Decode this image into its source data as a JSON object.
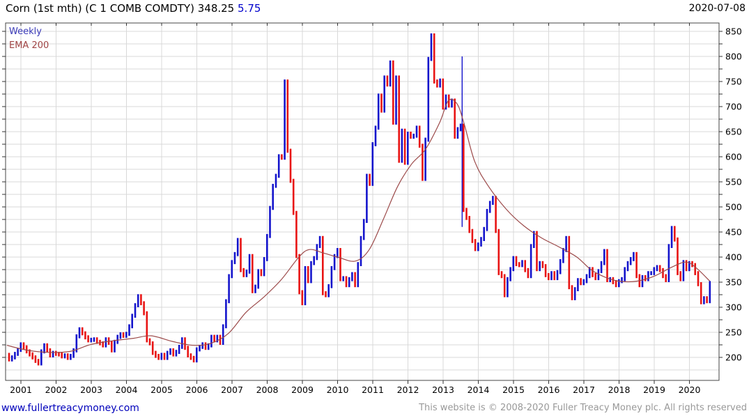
{
  "header": {
    "title": "Corn (1st mth) (C 1 COMB COMDTY)",
    "last_price": "348.25",
    "change": "5.75",
    "date": "2020-07-08"
  },
  "legend": {
    "series1": "Weekly",
    "series2": "EMA 200"
  },
  "footer": {
    "site_url": "www.fullertreacymoney.com",
    "copyright": "This website is © 2008-2020 Fuller Treacy Money plc. All rights reserved"
  },
  "colors": {
    "up_bar": "#1414cc",
    "down_bar": "#e81414",
    "ema_line": "#9c4a4a",
    "grid": "#d9d9d9",
    "border": "#444444",
    "axis_text": "#000000",
    "change_text": "#0000cc",
    "link_text": "#0000bb",
    "copyright_text": "#999999"
  },
  "chart_data": {
    "type": "line",
    "style": "weekly OHLC-style price bars, blue = up week, red = down week, with EMA overlay",
    "title": "Corn (1st mth) (C 1 COMB COMDTY) 348.25 5.75",
    "xlabel": "",
    "ylabel": "",
    "legend_position": "top-left",
    "grid": true,
    "x_ticks": [
      2001,
      2002,
      2003,
      2004,
      2005,
      2006,
      2007,
      2008,
      2009,
      2010,
      2011,
      2012,
      2013,
      2014,
      2015,
      2016,
      2017,
      2018,
      2019,
      2020
    ],
    "y_ticks": [
      200,
      250,
      300,
      350,
      400,
      450,
      500,
      550,
      600,
      650,
      700,
      750,
      800,
      850
    ],
    "y_grid_min": 175,
    "y_grid_max": 850,
    "y_grid_step": 25,
    "x_start_year": 2000.58,
    "x_step_years": 0.083333,
    "series": [
      {
        "name": "Weekly",
        "kind": "price-bars",
        "closes": [
          205,
          196,
          200,
          207,
          215,
          226,
          220,
          212,
          206,
          200,
          193,
          188,
          212,
          224,
          214,
          204,
          209,
          207,
          206,
          202,
          204,
          199,
          203,
          214,
          242,
          256,
          248,
          240,
          234,
          235,
          236,
          231,
          228,
          224,
          236,
          229,
          214,
          231,
          241,
          246,
          243,
          247,
          262,
          283,
          304,
          322,
          308,
          288,
          234,
          228,
          209,
          203,
          199,
          205,
          199,
          209,
          214,
          206,
          211,
          221,
          236,
          219,
          204,
          199,
          194,
          216,
          221,
          226,
          219,
          224,
          241,
          234,
          241,
          229,
          262,
          312,
          362,
          390,
          406,
          434,
          374,
          364,
          371,
          402,
          332,
          341,
          372,
          366,
          396,
          442,
          498,
          542,
          562,
          601,
          598,
          750,
          612,
          552,
          488,
          402,
          330,
          308,
          378,
          352,
          388,
          398,
          422,
          438,
          328,
          324,
          342,
          378,
          402,
          414,
          356,
          358,
          344,
          356,
          366,
          344,
          386,
          438,
          472,
          562,
          546,
          625,
          658,
          722,
          692,
          758,
          744,
          788,
          668,
          758,
          592,
          652,
          588,
          646,
          640,
          642,
          658,
          622,
          556,
          634,
          795,
          842,
          750,
          742,
          752,
          698,
          720,
          702,
          712,
          640,
          655,
          662,
          494,
          478,
          452,
          432,
          416,
          425,
          436,
          456,
          492,
          508,
          518,
          452,
          368,
          362,
          324,
          356,
          376,
          398,
          386,
          384,
          390,
          374,
          362,
          422,
          448,
          376,
          388,
          382,
          364,
          358,
          368,
          358,
          370,
          392,
          414,
          438,
          340,
          318,
          336,
          354,
          348,
          352,
          362,
          376,
          364,
          358,
          372,
          388,
          412,
          354,
          356,
          350,
          344,
          352,
          356,
          376,
          388,
          396,
          406,
          362,
          344,
          360,
          356,
          368,
          368,
          376,
          380,
          374,
          362,
          354,
          422,
          458,
          435,
          368,
          356,
          390,
          376,
          388,
          384,
          368,
          346,
          310,
          318,
          312,
          348.25
        ]
      },
      {
        "name": "EMA 200",
        "kind": "line",
        "points": [
          [
            2000.6,
            224
          ],
          [
            2001.2,
            214
          ],
          [
            2001.8,
            210
          ],
          [
            2002.4,
            212
          ],
          [
            2003.0,
            226
          ],
          [
            2003.6,
            233
          ],
          [
            2004.2,
            238
          ],
          [
            2004.7,
            243
          ],
          [
            2005.3,
            232
          ],
          [
            2005.9,
            224
          ],
          [
            2006.4,
            228
          ],
          [
            2006.9,
            248
          ],
          [
            2007.4,
            290
          ],
          [
            2007.9,
            320
          ],
          [
            2008.4,
            355
          ],
          [
            2008.9,
            400
          ],
          [
            2009.2,
            415
          ],
          [
            2009.6,
            408
          ],
          [
            2010.0,
            400
          ],
          [
            2010.5,
            392
          ],
          [
            2010.9,
            415
          ],
          [
            2011.3,
            475
          ],
          [
            2011.7,
            540
          ],
          [
            2012.1,
            585
          ],
          [
            2012.5,
            615
          ],
          [
            2012.9,
            668
          ],
          [
            2013.15,
            712
          ],
          [
            2013.4,
            705
          ],
          [
            2013.6,
            665
          ],
          [
            2013.9,
            590
          ],
          [
            2014.3,
            540
          ],
          [
            2014.8,
            495
          ],
          [
            2015.3,
            462
          ],
          [
            2015.8,
            438
          ],
          [
            2016.3,
            420
          ],
          [
            2016.8,
            400
          ],
          [
            2017.2,
            375
          ],
          [
            2017.6,
            360
          ],
          [
            2018.0,
            352
          ],
          [
            2018.5,
            352
          ],
          [
            2019.0,
            362
          ],
          [
            2019.5,
            380
          ],
          [
            2019.9,
            390
          ],
          [
            2020.2,
            378
          ],
          [
            2020.58,
            352
          ]
        ]
      }
    ],
    "anomaly_spike": {
      "x": 2013.54,
      "from": 460,
      "to": 800
    },
    "last_price": 348.25,
    "ylim": [
      154,
      867
    ],
    "xlim": [
      2000.56,
      2020.83
    ]
  }
}
